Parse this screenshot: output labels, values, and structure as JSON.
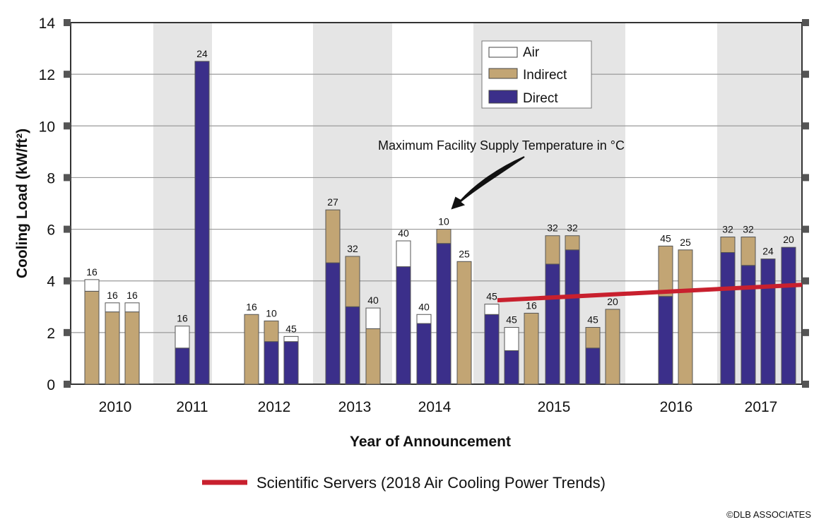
{
  "chart_data": {
    "type": "bar",
    "stacked": true,
    "ylabel": "Cooling Load (kW/ft²)",
    "xlabel": "Year of Announcement",
    "ylim": [
      0,
      14
    ],
    "yticks": [
      0,
      2,
      4,
      6,
      8,
      10,
      12,
      14
    ],
    "grid": true,
    "years": [
      "2010",
      "2011",
      "2012",
      "2013",
      "2014",
      "2015",
      "2016",
      "2017"
    ],
    "legend": {
      "placement": "top-center",
      "entries": [
        {
          "name": "Air",
          "color": "#ffffff"
        },
        {
          "name": "Indirect",
          "color": "#c2a574"
        },
        {
          "name": "Direct",
          "color": "#3b2f8a"
        }
      ]
    },
    "annotation": "Maximum Facility Supply Temperature in °C",
    "bars": [
      {
        "year": "2010",
        "direct": 0,
        "indirect": 3.6,
        "air": 0.45,
        "label": "16"
      },
      {
        "year": "2010",
        "direct": 0,
        "indirect": 2.8,
        "air": 0.35,
        "label": "16"
      },
      {
        "year": "2010",
        "direct": 0,
        "indirect": 2.8,
        "air": 0.35,
        "label": "16"
      },
      {
        "year": "2011",
        "direct": 1.4,
        "indirect": 0,
        "air": 0.85,
        "label": "16"
      },
      {
        "year": "2011",
        "direct": 12.5,
        "indirect": 0,
        "air": 0,
        "label": "24"
      },
      {
        "year": "2012",
        "direct": 0,
        "indirect": 2.7,
        "air": 0,
        "label": "16"
      },
      {
        "year": "2012",
        "direct": 1.65,
        "indirect": 0.8,
        "air": 0,
        "label": "10"
      },
      {
        "year": "2012",
        "direct": 1.65,
        "indirect": 0,
        "air": 0.2,
        "label": "45"
      },
      {
        "year": "2013",
        "direct": 4.7,
        "indirect": 2.05,
        "air": 0,
        "label": "27"
      },
      {
        "year": "2013",
        "direct": 3.0,
        "indirect": 1.95,
        "air": 0,
        "label": "32"
      },
      {
        "year": "2013",
        "direct": 0,
        "indirect": 2.15,
        "air": 0.8,
        "label": "40"
      },
      {
        "year": "2014",
        "direct": 4.55,
        "indirect": 0,
        "air": 1.0,
        "label": "40"
      },
      {
        "year": "2014",
        "direct": 2.35,
        "indirect": 0,
        "air": 0.35,
        "label": "40"
      },
      {
        "year": "2014",
        "direct": 5.45,
        "indirect": 0.55,
        "air": 0,
        "label": "10"
      },
      {
        "year": "2014",
        "direct": 0,
        "indirect": 4.75,
        "air": 0,
        "label": "25"
      },
      {
        "year": "2015",
        "direct": 2.7,
        "indirect": 0,
        "air": 0.4,
        "label": "45"
      },
      {
        "year": "2015",
        "direct": 1.3,
        "indirect": 0,
        "air": 0.9,
        "label": "45"
      },
      {
        "year": "2015",
        "direct": 0,
        "indirect": 2.75,
        "air": 0,
        "label": "16"
      },
      {
        "year": "2015",
        "direct": 4.65,
        "indirect": 1.1,
        "air": 0,
        "label": "32"
      },
      {
        "year": "2015",
        "direct": 5.2,
        "indirect": 0.55,
        "air": 0,
        "label": "32"
      },
      {
        "year": "2015",
        "direct": 1.4,
        "indirect": 0.8,
        "air": 0,
        "label": "45"
      },
      {
        "year": "2015",
        "direct": 0,
        "indirect": 2.9,
        "air": 0,
        "label": "20"
      },
      {
        "year": "2016",
        "direct": 3.4,
        "indirect": 1.95,
        "air": 0,
        "label": "45"
      },
      {
        "year": "2016",
        "direct": 0,
        "indirect": 5.2,
        "air": 0,
        "label": "25"
      },
      {
        "year": "2017",
        "direct": 5.1,
        "indirect": 0.6,
        "air": 0,
        "label": "32"
      },
      {
        "year": "2017",
        "direct": 4.6,
        "indirect": 1.1,
        "air": 0,
        "label": "32"
      },
      {
        "year": "2017",
        "direct": 4.85,
        "indirect": 0,
        "air": 0,
        "label": "24"
      },
      {
        "year": "2017",
        "direct": 5.3,
        "indirect": 0,
        "air": 0,
        "label": "20"
      }
    ],
    "trend_line": {
      "name": "Scientific Servers (2018 Air Cooling Power Trends)",
      "color": "#c8202e",
      "y_start": 3.25,
      "y_end": 3.85
    }
  },
  "copyright": "©DLB ASSOCIATES"
}
